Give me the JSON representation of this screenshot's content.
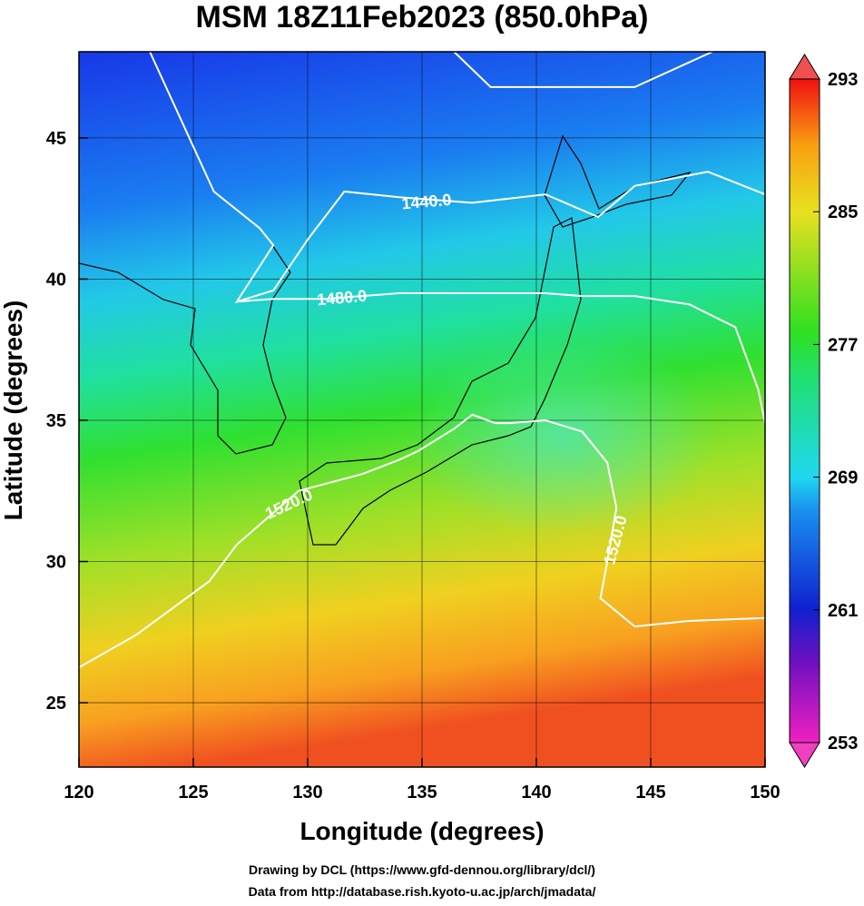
{
  "chart_data": {
    "type": "map",
    "title": "MSM 18Z11Feb2023 (850.0hPa)",
    "xlabel": "Longitude (degrees)",
    "ylabel": "Latitude  (degrees)",
    "xlim": [
      120,
      150
    ],
    "ylim": [
      22.72,
      48.05
    ],
    "xticks": [
      120,
      125,
      130,
      135,
      140,
      145,
      150
    ],
    "yticks": [
      25,
      30,
      35,
      40,
      45
    ],
    "grid": true,
    "colorbar": {
      "lim": [
        253,
        293
      ],
      "ticks": [
        253,
        261,
        269,
        277,
        285,
        293
      ]
    },
    "contours": [
      {
        "label": "1440.0",
        "label_at": [
          [
            135.2,
            42.7
          ]
        ],
        "x": [
          123.1,
          125.9,
          127.9,
          128.5,
          126.9,
          128.5,
          130.0,
          131.6,
          134.0,
          137.2,
          140.4,
          142.7,
          144.3,
          147.5,
          150.0,
          null,
          136.4,
          138.0,
          144.3,
          147.7
        ],
        "y": [
          48.05,
          43.1,
          41.8,
          41.2,
          39.2,
          39.6,
          41.4,
          43.1,
          42.9,
          42.7,
          43.0,
          42.2,
          43.3,
          43.8,
          43.0,
          null,
          48.05,
          46.8,
          46.8,
          48.05
        ]
      },
      {
        "label": "1480.0",
        "label_at": [
          [
            131.5,
            39.3
          ]
        ],
        "x": [
          126.9,
          128.5,
          130.8,
          134.0,
          137.2,
          140.4,
          142.0,
          144.3,
          146.7,
          148.7,
          149.7,
          150.0
        ],
        "y": [
          39.2,
          39.3,
          39.3,
          39.5,
          39.5,
          39.5,
          39.4,
          39.4,
          39.1,
          38.3,
          36.1,
          34.9
        ]
      },
      {
        "label": "1520.0",
        "label_at": [
          [
            129.2,
            32.0
          ],
          [
            143.5,
            30.75
          ]
        ],
        "x": [
          120.0,
          122.5,
          125.7,
          126.9,
          129.6,
          132.4,
          134.0,
          134.8,
          136.4,
          137.2,
          138.2,
          138.8,
          140.4,
          142.0,
          143.1,
          143.5,
          143.1,
          142.8,
          144.3,
          146.7,
          150.0
        ],
        "y": [
          26.25,
          27.4,
          29.3,
          30.6,
          32.5,
          33.1,
          33.6,
          33.9,
          34.7,
          35.2,
          34.9,
          34.9,
          35.0,
          34.6,
          33.5,
          31.9,
          30.0,
          28.7,
          27.7,
          27.9,
          28.0
        ]
      }
    ],
    "notes": [
      "Drawing by DCL (https://www.gfd-dennou.org/library/dcl/)",
      "Data from http://database.rish.kyoto-u.ac.jp/arch/jmadata/"
    ]
  }
}
